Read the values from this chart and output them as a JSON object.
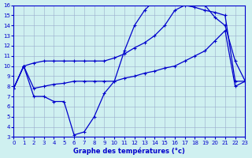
{
  "x_min": 0,
  "x_max": 23,
  "y_min": 3,
  "y_max": 16,
  "y_ticks": [
    3,
    4,
    5,
    6,
    7,
    8,
    9,
    10,
    11,
    12,
    13,
    14,
    15,
    16
  ],
  "x_ticks": [
    0,
    1,
    2,
    3,
    4,
    5,
    6,
    7,
    8,
    9,
    10,
    11,
    12,
    13,
    14,
    15,
    16,
    17,
    18,
    19,
    20,
    21,
    22,
    23
  ],
  "xlabel": "Graphe des températures (°c)",
  "bg_color": "#cff0f0",
  "grid_color": "#99aacc",
  "line_color": "#0000cc",
  "line1_x": [
    0,
    1,
    2,
    3,
    4,
    5,
    6,
    7,
    8,
    9,
    10,
    11,
    12,
    13,
    14,
    15,
    16,
    17,
    18,
    19,
    20,
    21,
    22,
    23
  ],
  "line1_y": [
    7.8,
    10.0,
    7.0,
    7.0,
    6.5,
    6.5,
    3.2,
    3.5,
    5.0,
    7.3,
    8.5,
    11.5,
    14.0,
    15.5,
    16.5,
    16.5,
    16.5,
    16.5,
    16.3,
    16.0,
    14.8,
    14.0,
    10.5,
    8.5
  ],
  "line2_x": [
    0,
    1,
    2,
    3,
    4,
    5,
    6,
    7,
    8,
    9,
    10,
    11,
    12,
    13,
    14,
    15,
    16,
    17,
    18,
    19,
    20,
    21,
    22,
    23
  ],
  "line2_y": [
    7.8,
    10.0,
    10.3,
    10.5,
    10.5,
    10.5,
    10.5,
    10.5,
    10.5,
    10.5,
    10.8,
    11.2,
    11.8,
    12.3,
    13.0,
    14.0,
    15.5,
    16.0,
    15.8,
    15.5,
    15.3,
    15.0,
    8.5,
    8.5
  ],
  "line3_x": [
    0,
    1,
    2,
    3,
    4,
    5,
    6,
    7,
    8,
    9,
    10,
    11,
    12,
    13,
    14,
    15,
    16,
    17,
    18,
    19,
    20,
    21,
    22,
    23
  ],
  "line3_y": [
    7.8,
    10.0,
    7.8,
    8.0,
    8.2,
    8.3,
    8.5,
    8.5,
    8.5,
    8.5,
    8.5,
    8.8,
    9.0,
    9.3,
    9.5,
    9.8,
    10.0,
    10.5,
    11.0,
    11.5,
    12.5,
    13.5,
    8.0,
    8.5
  ],
  "marker_size": 2.5,
  "line_width": 0.9
}
